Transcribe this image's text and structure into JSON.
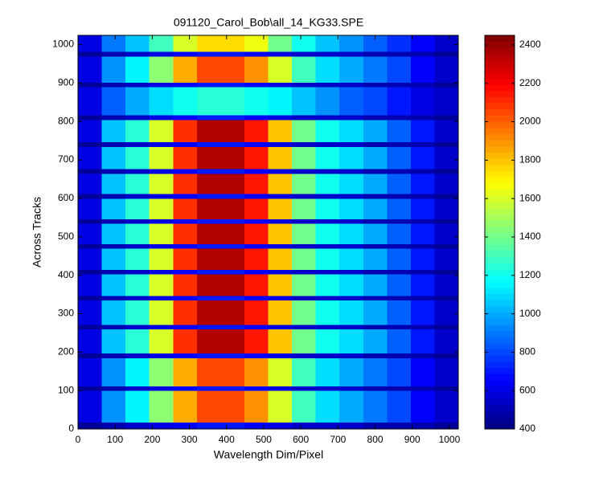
{
  "chart_data": {
    "type": "heatmap",
    "title": "091120_Carol_Bob\\all_14_KG33.SPE",
    "x_label": "Wavelength Dim/Pixel",
    "y_label": "Across Tracks",
    "xlim": [
      0,
      1024
    ],
    "ylim": [
      0,
      1024
    ],
    "xticks": [
      0,
      100,
      200,
      300,
      400,
      500,
      600,
      700,
      800,
      900,
      1000
    ],
    "yticks": [
      0,
      100,
      200,
      300,
      400,
      500,
      600,
      700,
      800,
      900,
      1000
    ],
    "x_edges": [
      0,
      64,
      128,
      192,
      256,
      320,
      384,
      448,
      512,
      576,
      640,
      704,
      768,
      832,
      896,
      960,
      1024
    ],
    "y_edges": [
      0,
      18,
      100,
      112,
      185,
      197,
      260,
      272,
      335,
      347,
      403,
      415,
      470,
      482,
      535,
      547,
      600,
      612,
      665,
      677,
      735,
      747,
      805,
      817,
      890,
      902,
      970,
      982,
      1024
    ],
    "colormap": "jet",
    "clim": [
      400,
      2450
    ],
    "colorbar_ticks": [
      400,
      600,
      800,
      1000,
      1200,
      1400,
      1600,
      1800,
      2000,
      2200,
      2400
    ],
    "values": [
      [
        450,
        500,
        550,
        600,
        650,
        700,
        700,
        650,
        600,
        550,
        550,
        550,
        500,
        500,
        500,
        450
      ],
      [
        600,
        950,
        1150,
        1450,
        1850,
        2050,
        2050,
        1900,
        1600,
        1300,
        1100,
        1000,
        900,
        800,
        650,
        550
      ],
      [
        450,
        500,
        550,
        600,
        650,
        700,
        700,
        650,
        600,
        550,
        550,
        550,
        500,
        500,
        500,
        450
      ],
      [
        600,
        950,
        1150,
        1450,
        1850,
        2050,
        2050,
        1900,
        1600,
        1300,
        1100,
        1000,
        900,
        800,
        650,
        550
      ],
      [
        450,
        500,
        550,
        600,
        650,
        700,
        700,
        650,
        600,
        550,
        550,
        550,
        500,
        500,
        500,
        450
      ],
      [
        600,
        1050,
        1250,
        1600,
        2100,
        2350,
        2350,
        2150,
        1800,
        1400,
        1200,
        1100,
        1000,
        850,
        700,
        550
      ],
      [
        450,
        500,
        550,
        600,
        650,
        700,
        700,
        650,
        600,
        550,
        550,
        550,
        500,
        500,
        500,
        450
      ],
      [
        600,
        1050,
        1250,
        1600,
        2100,
        2350,
        2350,
        2150,
        1800,
        1400,
        1200,
        1100,
        1000,
        850,
        700,
        550
      ],
      [
        450,
        500,
        550,
        600,
        650,
        700,
        700,
        650,
        600,
        550,
        550,
        550,
        500,
        500,
        500,
        450
      ],
      [
        600,
        1050,
        1250,
        1600,
        2100,
        2350,
        2350,
        2150,
        1800,
        1400,
        1200,
        1100,
        1000,
        850,
        700,
        550
      ],
      [
        450,
        500,
        550,
        600,
        650,
        700,
        700,
        650,
        600,
        550,
        550,
        550,
        500,
        500,
        500,
        450
      ],
      [
        600,
        1050,
        1250,
        1600,
        2100,
        2350,
        2350,
        2150,
        1800,
        1400,
        1200,
        1100,
        1000,
        850,
        700,
        550
      ],
      [
        450,
        500,
        550,
        600,
        650,
        700,
        700,
        650,
        600,
        550,
        550,
        550,
        500,
        500,
        500,
        450
      ],
      [
        600,
        1050,
        1250,
        1600,
        2100,
        2350,
        2350,
        2150,
        1800,
        1400,
        1200,
        1100,
        1000,
        850,
        700,
        550
      ],
      [
        450,
        500,
        550,
        600,
        650,
        700,
        700,
        650,
        600,
        550,
        550,
        550,
        500,
        500,
        500,
        450
      ],
      [
        600,
        1050,
        1250,
        1600,
        2100,
        2350,
        2350,
        2150,
        1800,
        1400,
        1200,
        1100,
        1000,
        850,
        700,
        550
      ],
      [
        450,
        500,
        550,
        600,
        650,
        700,
        700,
        650,
        600,
        550,
        550,
        550,
        500,
        500,
        500,
        450
      ],
      [
        600,
        1050,
        1250,
        1600,
        2100,
        2350,
        2350,
        2150,
        1800,
        1400,
        1200,
        1100,
        1000,
        850,
        700,
        550
      ],
      [
        450,
        500,
        550,
        600,
        650,
        700,
        700,
        650,
        600,
        550,
        550,
        550,
        500,
        500,
        500,
        450
      ],
      [
        600,
        1050,
        1250,
        1600,
        2100,
        2350,
        2350,
        2150,
        1800,
        1400,
        1200,
        1100,
        1000,
        850,
        700,
        550
      ],
      [
        450,
        500,
        550,
        600,
        650,
        700,
        700,
        650,
        600,
        550,
        550,
        550,
        500,
        500,
        500,
        450
      ],
      [
        600,
        1050,
        1250,
        1600,
        2100,
        2350,
        2350,
        2150,
        1800,
        1400,
        1200,
        1100,
        1000,
        850,
        700,
        550
      ],
      [
        450,
        500,
        550,
        600,
        650,
        700,
        700,
        650,
        600,
        550,
        550,
        550,
        500,
        500,
        500,
        450
      ],
      [
        600,
        850,
        1000,
        1100,
        1200,
        1250,
        1250,
        1200,
        1150,
        1050,
        950,
        850,
        800,
        700,
        600,
        550
      ],
      [
        450,
        500,
        550,
        600,
        650,
        700,
        700,
        650,
        600,
        550,
        550,
        550,
        500,
        500,
        500,
        450
      ],
      [
        600,
        950,
        1150,
        1450,
        1850,
        2050,
        2050,
        1900,
        1600,
        1300,
        1100,
        1000,
        900,
        800,
        650,
        550
      ],
      [
        450,
        500,
        550,
        600,
        650,
        700,
        700,
        650,
        600,
        550,
        550,
        550,
        500,
        500,
        500,
        450
      ],
      [
        600,
        900,
        1050,
        1300,
        1600,
        1750,
        1750,
        1650,
        1400,
        1200,
        1050,
        950,
        850,
        750,
        650,
        550
      ]
    ]
  }
}
